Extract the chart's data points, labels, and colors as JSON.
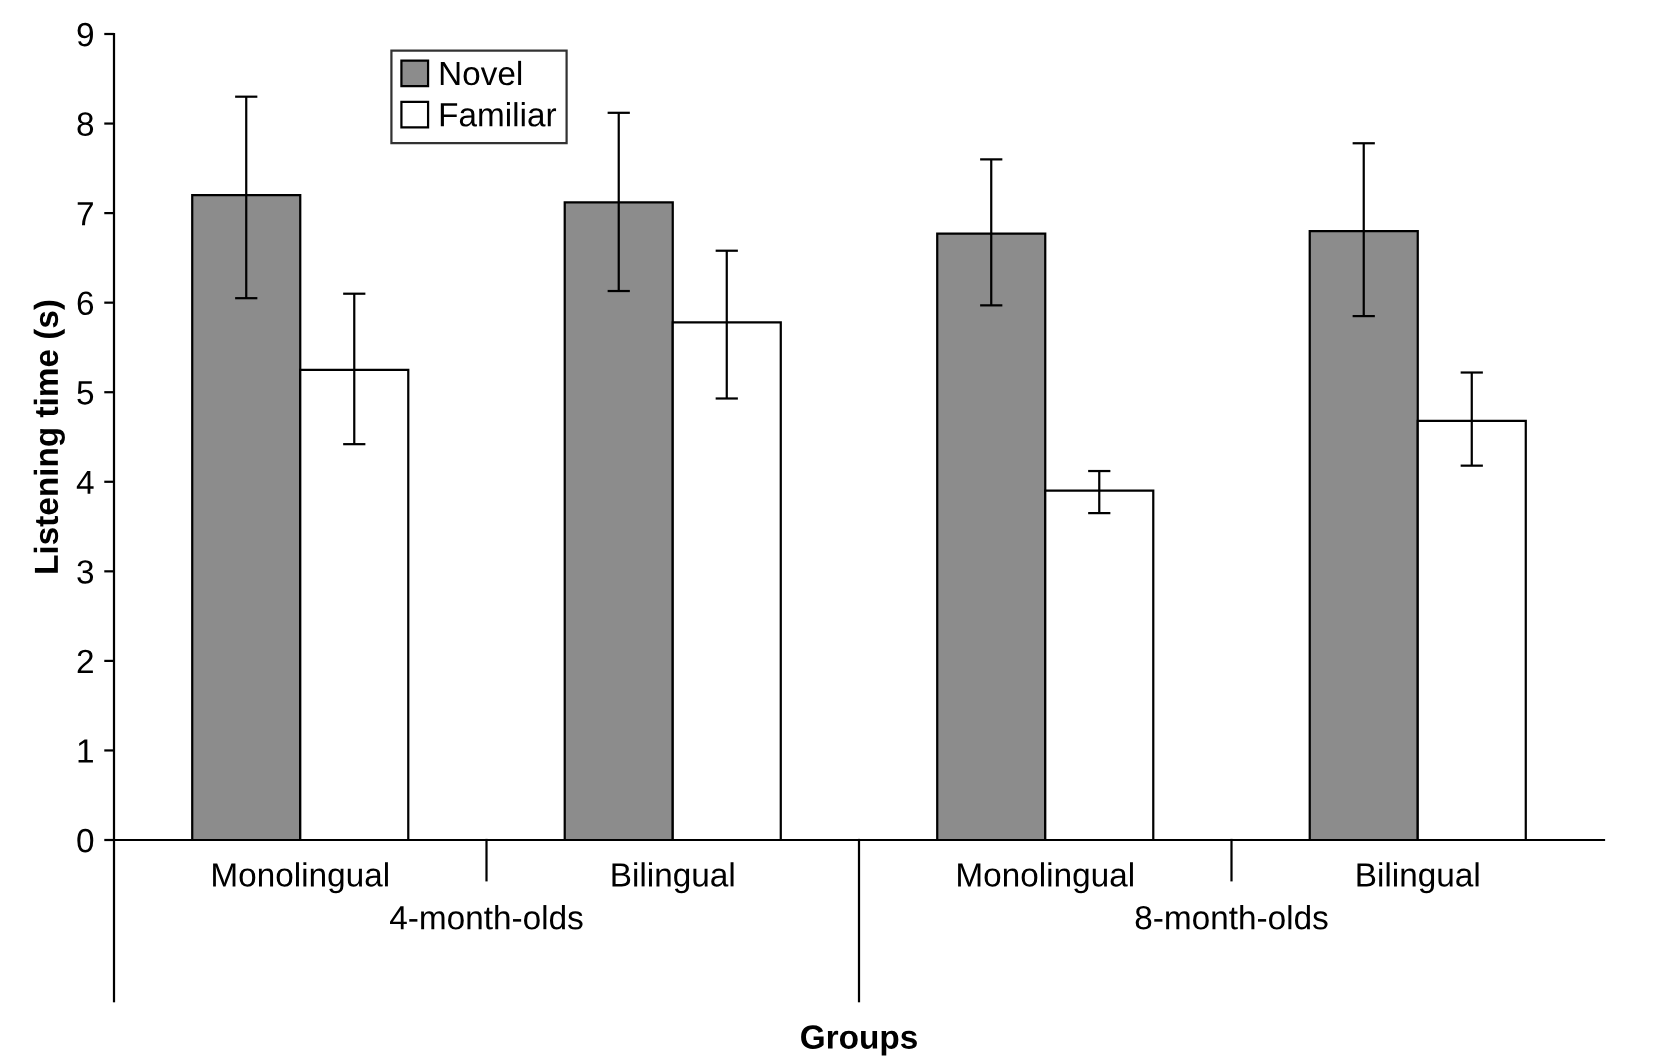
{
  "chart_data": {
    "type": "bar",
    "xlabel": "Groups",
    "ylabel": "Listening time (s)",
    "categories": [
      "Monolingual",
      "Bilingual",
      "Monolingual",
      "Bilingual"
    ],
    "series": [
      {
        "name": "Novel",
        "color": "#8c8c8c",
        "values": [
          7.2,
          7.12,
          6.77,
          6.8
        ],
        "errors": [
          [
            6.05,
            8.3
          ],
          [
            6.13,
            8.12
          ],
          [
            5.97,
            7.6
          ],
          [
            5.85,
            7.78
          ]
        ]
      },
      {
        "name": "Familiar",
        "color": "#ffffff",
        "values": [
          5.25,
          5.78,
          3.9,
          4.68
        ],
        "errors": [
          [
            4.42,
            6.1
          ],
          [
            4.93,
            6.58
          ],
          [
            3.65,
            4.12
          ],
          [
            4.18,
            5.22
          ]
        ]
      }
    ],
    "annotations": [
      "4-month-olds",
      "8-month-olds"
    ],
    "ylim": [
      0,
      9
    ],
    "yticks": [
      0,
      1,
      2,
      3,
      4,
      5,
      6,
      7,
      8,
      9
    ],
    "grid": false,
    "legend": "top left"
  }
}
